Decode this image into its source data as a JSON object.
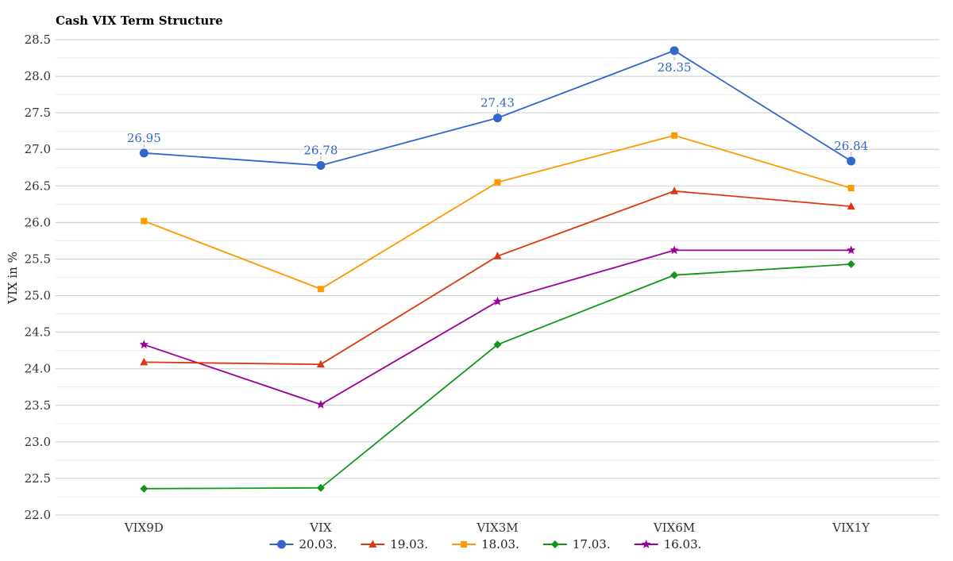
{
  "chart_data": {
    "type": "line",
    "title": "Cash VIX Term Structure",
    "xlabel": "",
    "ylabel": "VIX in %",
    "categories": [
      "VIX9D",
      "VIX",
      "VIX3M",
      "VIX6M",
      "VIX1Y"
    ],
    "ylim": [
      22.0,
      28.5
    ],
    "yticks": [
      "22.0",
      "22.5",
      "23.0",
      "23.5",
      "24.0",
      "24.5",
      "25.0",
      "25.5",
      "26.0",
      "26.5",
      "27.0",
      "27.5",
      "28.0",
      "28.5"
    ],
    "grid": true,
    "legend": "bottom-center",
    "series": [
      {
        "name": "20.03.",
        "color": "#3366cc",
        "marker": "circle",
        "values": [
          26.95,
          26.78,
          27.43,
          28.35,
          26.84
        ],
        "labels": [
          "26.95",
          "26.78",
          "27.43",
          "28.35",
          "26.84"
        ]
      },
      {
        "name": "19.03.",
        "color": "#dc3912",
        "marker": "triangle",
        "values": [
          24.09,
          24.06,
          25.54,
          26.43,
          26.22
        ]
      },
      {
        "name": "18.03.",
        "color": "#ff9900",
        "marker": "square",
        "values": [
          26.02,
          25.09,
          26.55,
          27.19,
          26.47
        ]
      },
      {
        "name": "17.03.",
        "color": "#109618",
        "marker": "diamond",
        "values": [
          22.36,
          22.37,
          24.33,
          25.28,
          25.43
        ]
      },
      {
        "name": "16.03.",
        "color": "#990099",
        "marker": "star",
        "values": [
          24.33,
          23.51,
          24.92,
          25.62,
          25.62
        ]
      }
    ]
  }
}
